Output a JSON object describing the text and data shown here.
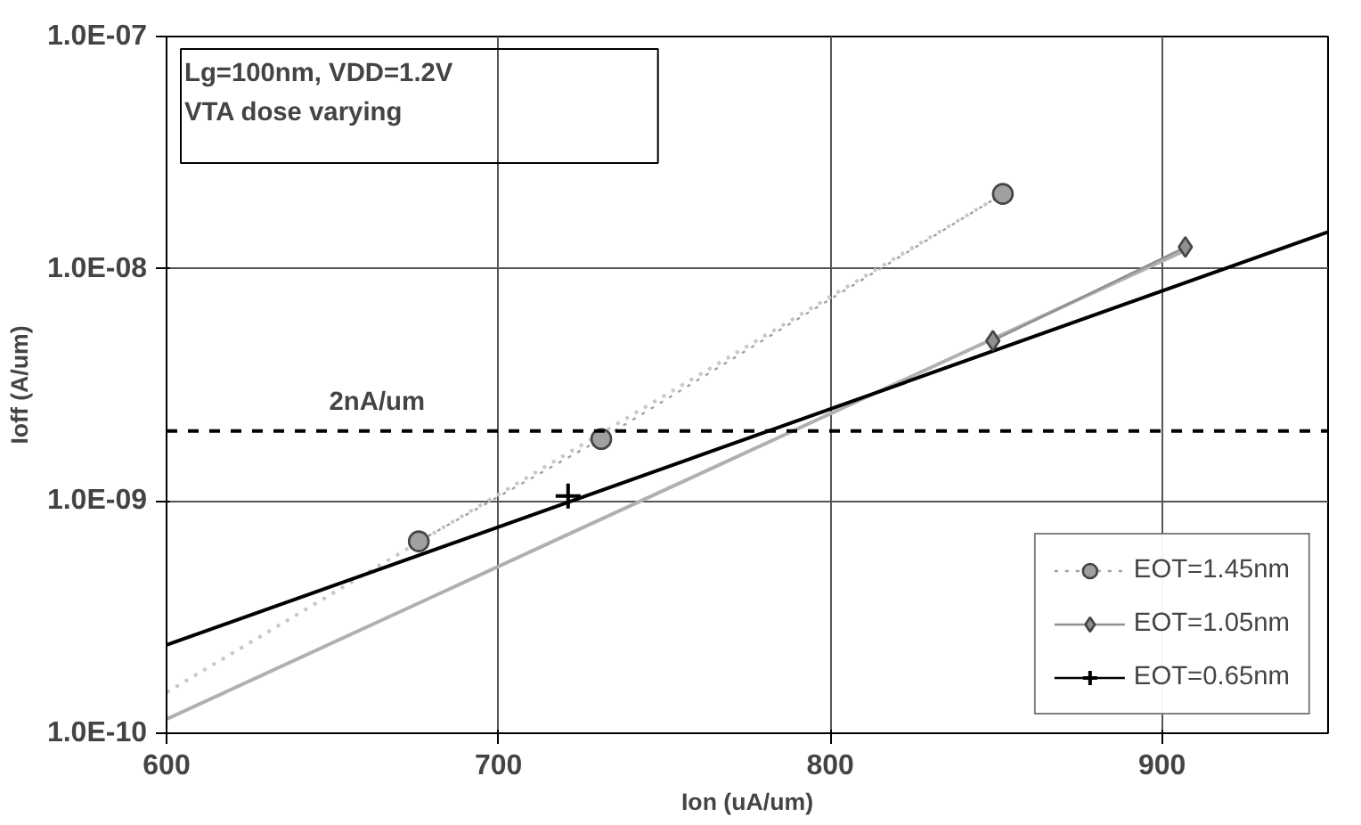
{
  "chart_data": {
    "type": "line",
    "xlabel": "Ion (uA/um)",
    "ylabel": "Ioff (A/um)",
    "xlim": [
      600,
      950
    ],
    "xticks": [
      600,
      700,
      800,
      900
    ],
    "ylim": [
      1e-10,
      1e-07
    ],
    "log": "y",
    "yticks": [
      {
        "value": 1e-10,
        "label": "1.0E-10"
      },
      {
        "value": 1e-09,
        "label": "1.0E-09"
      },
      {
        "value": 1e-08,
        "label": "1.0E-08"
      },
      {
        "value": 1e-07,
        "label": "1.0E-07"
      }
    ],
    "grid": true,
    "legend": "bottom right",
    "annotations": [
      "Lg=100nm, VDD=1.2V",
      "VTA dose varying"
    ],
    "ref_lines": [
      {
        "axis": "y",
        "value": 2e-09,
        "label": "2nA/um",
        "color": "#000000",
        "line_style": "dashed"
      }
    ],
    "series": [
      {
        "color": "#c8c8c8",
        "line_style": "dotted",
        "x": [
          600,
          852
        ],
        "values": [
          1.5e-10,
          2.1e-08
        ]
      },
      {
        "color": "#b0b0b0",
        "line_style": "solid",
        "x": [
          600,
          907
        ],
        "values": [
          1.15e-10,
          1.2e-08
        ]
      },
      {
        "color": "#000000",
        "line_style": "solid",
        "x": [
          600,
          950
        ],
        "values": [
          2.4e-10,
          1.44e-08
        ]
      },
      {
        "name": "EOT=1.45nm",
        "color": "#a0a0a0",
        "marker": "circle",
        "line_style": "dotted",
        "x": [
          676,
          731,
          852
        ],
        "values": [
          6.7e-10,
          1.85e-09,
          2.1e-08
        ]
      },
      {
        "name": "EOT=1.05nm",
        "color": "#909090",
        "marker": "diamond",
        "line_style": "solid",
        "x": [
          849,
          907
        ],
        "values": [
          4.9e-09,
          1.24e-08
        ]
      },
      {
        "name": "EOT=0.65nm",
        "color": "#000000",
        "marker": "cross",
        "line_style": "solid",
        "x": [
          721
        ],
        "values": [
          1.05e-09
        ]
      }
    ]
  }
}
